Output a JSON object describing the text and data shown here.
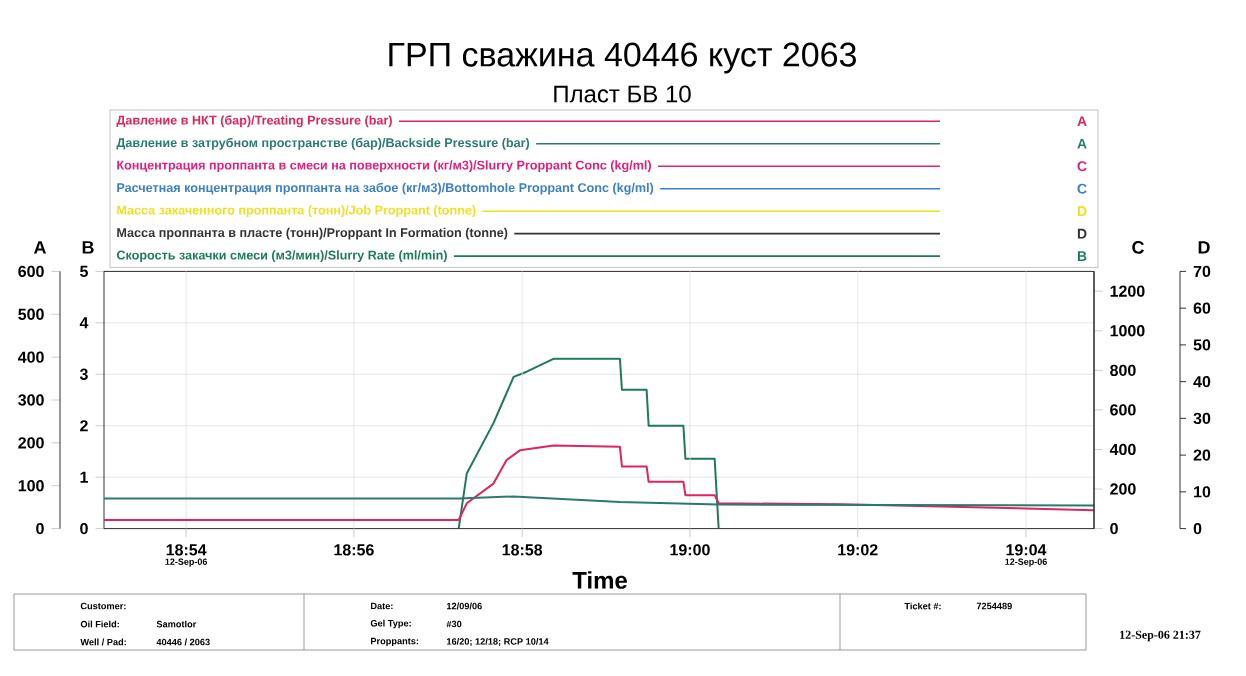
{
  "chart_data": {
    "type": "line",
    "title": "ГРП сважина 40446 куст 2063",
    "subtitle": "Пласт БВ 10",
    "xlabel": "Time",
    "ylabel": "A",
    "y2label": "B",
    "y3label": "C",
    "xlim": [
      18.8837,
      19.0802
    ],
    "xticks": [
      {
        "value": 18.9,
        "label": "18:54"
      },
      {
        "value": 18.9333,
        "label": "18:56"
      },
      {
        "value": 18.9667,
        "label": "18:58"
      },
      {
        "value": 19.0,
        "label": "19:00"
      },
      {
        "value": 19.0333,
        "label": "19:02"
      },
      {
        "value": 19.0667,
        "label": "19:04"
      }
    ],
    "ylim": [
      0,
      600
    ],
    "yticks": [
      0,
      100,
      200,
      300,
      400,
      500,
      600
    ],
    "y2lim": [
      0,
      5
    ],
    "y2ticks": [
      0,
      1,
      2,
      3,
      4,
      5
    ],
    "y3lim": [
      0,
      1300
    ],
    "y3ticks": [
      0,
      200,
      400,
      600,
      800,
      1000,
      1200
    ],
    "grid": true,
    "legend": "top",
    "series": [
      {
        "name": "Давление в НКТ (бар)/Treating Pressure (bar)",
        "color": "#e0245e",
        "axis": "y",
        "x": [
          18.8837,
          18.9541,
          18.9557,
          18.961,
          18.9636,
          18.9663,
          18.9729,
          18.9861,
          18.9865,
          18.9914,
          18.9918,
          18.9987,
          18.9991,
          19.0049,
          19.0057,
          19.03,
          19.0802
        ],
        "values": [
          20,
          20,
          59,
          105,
          160,
          183,
          194,
          191,
          145,
          145,
          109,
          109,
          78,
          78,
          59,
          57,
          43
        ]
      },
      {
        "name": "Давление в затрубном пространстве  (бар)/Backside Pressure (bar)",
        "color": "#2a7a72",
        "axis": "y",
        "x": [
          18.8837,
          18.9541,
          18.965,
          18.9861,
          19.0057,
          19.0802
        ],
        "values": [
          70,
          70,
          75,
          62,
          56,
          54
        ]
      },
      {
        "name": "Концентрация проппанта в смеси на поверхности (кг/м3)/Slurry Proppant Conc (kg/ml)",
        "color": "#e0207a",
        "axis": "y3"
      },
      {
        "name": "Расчетная концентрация проппанта на забое (кг/м3)/Bottomhole Proppant Conc (kg/ml)",
        "color": "#3a7fc8",
        "axis": "y3"
      },
      {
        "name": "Масса  закаченного проппанта (тонн)/Job Proppant (tonne)",
        "color": "#f0e020",
        "axis": "y3"
      },
      {
        "name": "Масса проппанта в пласте (тонн)/Proppant In Formation (tonne)",
        "color": "#333333",
        "axis": "y3"
      },
      {
        "name": "Скорость закачки смеси (м3/мин)/Slurry Rate (ml/min)",
        "color": "#1f7a5c",
        "axis": "y2",
        "x": [
          18.9541,
          18.9557,
          18.961,
          18.963,
          18.965,
          18.9676,
          18.9729,
          18.9861,
          18.9865,
          18.9914,
          18.9918,
          18.9987,
          18.9991,
          19.0049,
          19.0057
        ],
        "values": [
          0,
          1.07,
          2.05,
          2.5,
          2.95,
          3.05,
          3.3,
          3.3,
          2.7,
          2.7,
          2.0,
          2.0,
          1.36,
          1.36,
          0
        ]
      }
    ],
    "annotations": [
      "Customer:",
      "Oil Field:",
      "Samotlor",
      "Well / Pad:",
      "40446 / 2063",
      "Date:",
      "12/09/06",
      "Gel Type:",
      "#30",
      "Proppants:",
      "16/20; 12/18; RCP 10/14",
      "Ticket #:",
      "7254489",
      "12-Sep-06 21:37",
      "12-Sep-06",
      "12-Sep-06",
      "A",
      "A",
      "C",
      "C",
      "D",
      "D",
      "B",
      "D",
      "0",
      "10",
      "20",
      "30",
      "40",
      "50",
      "60",
      "70"
    ]
  }
}
